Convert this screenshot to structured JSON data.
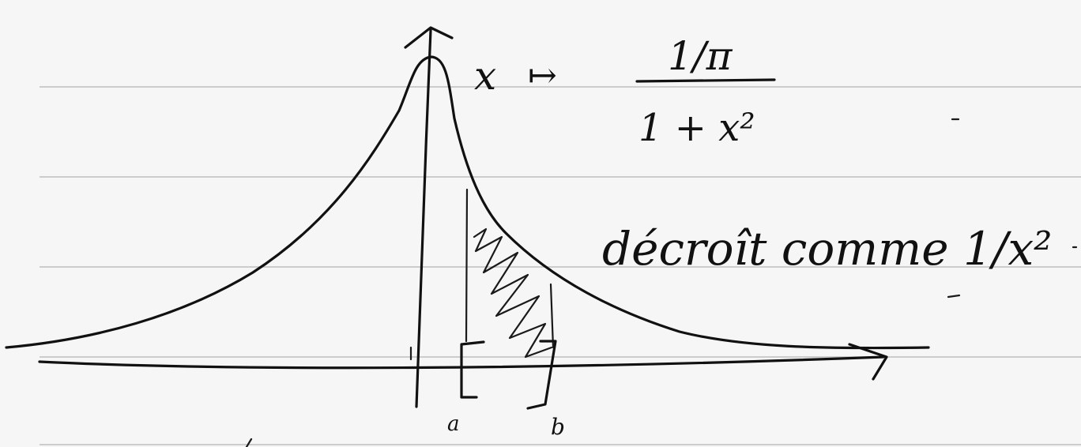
{
  "notebook": {
    "ruling": "horizontal lines",
    "colors": {
      "paper": "#f6f6f6",
      "rule": "#bdbdbd",
      "ink": "#111111"
    }
  },
  "formula": {
    "variable": "x",
    "maps_to": "↦",
    "numerator": "1/π",
    "denominator": "1 + x²"
  },
  "note": "décroît comme 1/x²",
  "interval": {
    "left_label": "a",
    "right_label": "b"
  }
}
